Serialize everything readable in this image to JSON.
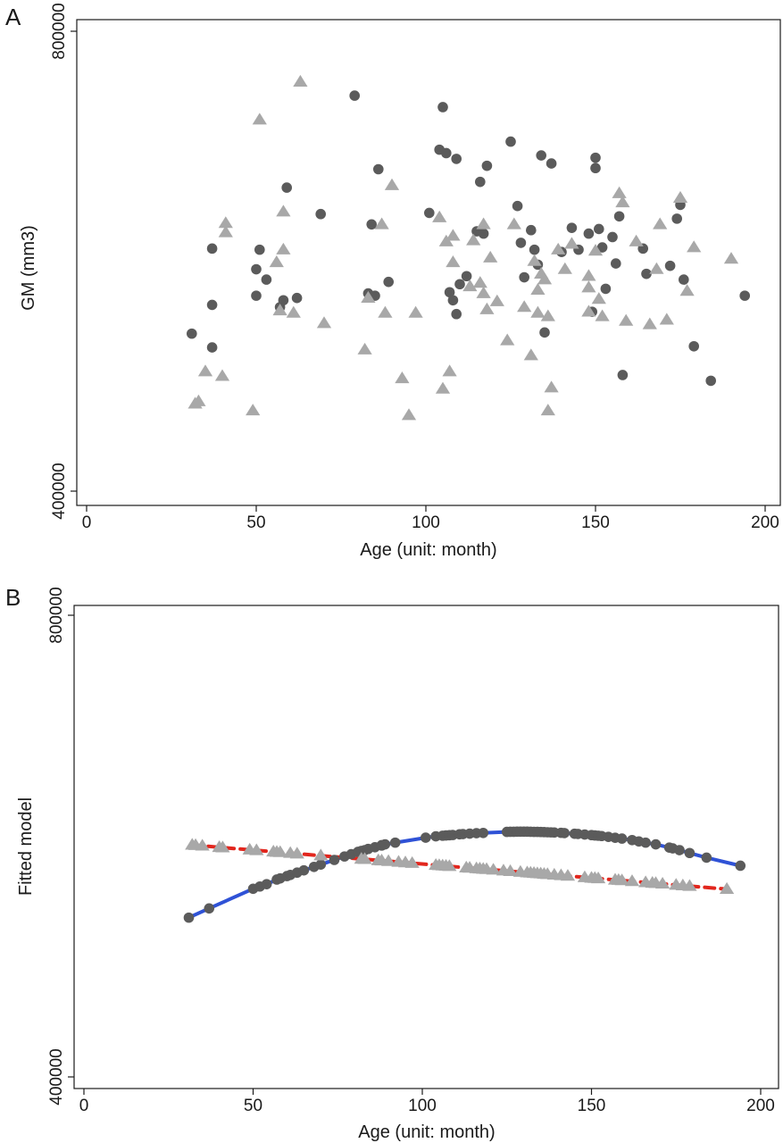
{
  "panels": [
    {
      "letter": "A",
      "xlabel": "Age (unit: month)",
      "ylabel": "GM (mm3)"
    },
    {
      "letter": "B",
      "xlabel": "Age (unit: month)",
      "ylabel": "Fitted model"
    }
  ],
  "colors": {
    "circle_group": "#5b5b5b",
    "triangle_group": "#a8a8a8",
    "circle_fit_line": "#2f52d6",
    "triangle_fit_line": "#e2261d",
    "frame": "#1a1a1a"
  },
  "chart_data": [
    {
      "panel": "A",
      "type": "scatter",
      "xlabel": "Age (unit: month)",
      "ylabel": "GM (mm3)",
      "xlim": [
        -5,
        205
      ],
      "ylim": [
        388000,
        805000
      ],
      "xticks": [
        0,
        50,
        100,
        150,
        200
      ],
      "yticks": [
        400000,
        800000
      ],
      "ytick_labels": [
        "400000",
        "800000"
      ],
      "grid": false,
      "series": [
        {
          "marker": "circle",
          "points": [
            [
              31,
              537000
            ],
            [
              37,
              525000
            ],
            [
              37,
              562000
            ],
            [
              37,
              611000
            ],
            [
              50,
              593000
            ],
            [
              50,
              570000
            ],
            [
              51,
              610000
            ],
            [
              53,
              584000
            ],
            [
              57,
              560000
            ],
            [
              58,
              566000
            ],
            [
              59,
              664000
            ],
            [
              62,
              568000
            ],
            [
              69,
              641000
            ],
            [
              79,
              744000
            ],
            [
              83,
              572000
            ],
            [
              84,
              632000
            ],
            [
              85,
              570000
            ],
            [
              86,
              680000
            ],
            [
              89,
              582000
            ],
            [
              101,
              642000
            ],
            [
              104,
              697000
            ],
            [
              105,
              734000
            ],
            [
              106,
              694000
            ],
            [
              107,
              573000
            ],
            [
              108,
              566000
            ],
            [
              109,
              689000
            ],
            [
              109,
              554000
            ],
            [
              110,
              580000
            ],
            [
              112,
              587000
            ],
            [
              115,
              626000
            ],
            [
              116,
              669000
            ],
            [
              117,
              624000
            ],
            [
              118,
              683000
            ],
            [
              125,
              704000
            ],
            [
              127,
              648000
            ],
            [
              128,
              616000
            ],
            [
              129,
              586000
            ],
            [
              131,
              627000
            ],
            [
              132,
              610000
            ],
            [
              133,
              597000
            ],
            [
              134,
              692000
            ],
            [
              135,
              538000
            ],
            [
              137,
              685000
            ],
            [
              140,
              608000
            ],
            [
              143,
              629000
            ],
            [
              145,
              610000
            ],
            [
              148,
              624000
            ],
            [
              149,
              556000
            ],
            [
              150,
              681000
            ],
            [
              150,
              690000
            ],
            [
              151,
              628000
            ],
            [
              152,
              612000
            ],
            [
              153,
              576000
            ],
            [
              155,
              621000
            ],
            [
              156,
              598000
            ],
            [
              157,
              639000
            ],
            [
              158,
              501000
            ],
            [
              164,
              611000
            ],
            [
              165,
              589000
            ],
            [
              172,
              596000
            ],
            [
              174,
              637000
            ],
            [
              175,
              649000
            ],
            [
              176,
              584000
            ],
            [
              179,
              526000
            ],
            [
              184,
              496000
            ],
            [
              194,
              570000
            ]
          ]
        },
        {
          "marker": "triangle",
          "points": [
            [
              32,
              476000
            ],
            [
              33,
              478000
            ],
            [
              35,
              504000
            ],
            [
              40,
              500000
            ],
            [
              41,
              633000
            ],
            [
              41,
              625000
            ],
            [
              49,
              470000
            ],
            [
              51,
              723000
            ],
            [
              56,
              599000
            ],
            [
              57,
              557000
            ],
            [
              58,
              610000
            ],
            [
              58,
              643000
            ],
            [
              61,
              555000
            ],
            [
              63,
              756000
            ],
            [
              70,
              546000
            ],
            [
              82,
              523000
            ],
            [
              83,
              568000
            ],
            [
              87,
              632000
            ],
            [
              88,
              555000
            ],
            [
              90,
              666000
            ],
            [
              93,
              498000
            ],
            [
              95,
              466000
            ],
            [
              97,
              555000
            ],
            [
              104,
              638000
            ],
            [
              105,
              489000
            ],
            [
              106,
              617000
            ],
            [
              107,
              504000
            ],
            [
              108,
              599000
            ],
            [
              108,
              622000
            ],
            [
              113,
              578000
            ],
            [
              114,
              618000
            ],
            [
              116,
              581000
            ],
            [
              117,
              572000
            ],
            [
              117,
              632000
            ],
            [
              118,
              558000
            ],
            [
              119,
              603000
            ],
            [
              121,
              565000
            ],
            [
              124,
              531000
            ],
            [
              126,
              632000
            ],
            [
              129,
              560000
            ],
            [
              131,
              518000
            ],
            [
              132,
              600000
            ],
            [
              133,
              555000
            ],
            [
              133,
              575000
            ],
            [
              134,
              589000
            ],
            [
              135,
              584000
            ],
            [
              136,
              470000
            ],
            [
              136,
              552000
            ],
            [
              137,
              490000
            ],
            [
              139,
              610000
            ],
            [
              141,
              593000
            ],
            [
              143,
              615000
            ],
            [
              148,
              556000
            ],
            [
              148,
              587000
            ],
            [
              148,
              577000
            ],
            [
              150,
              609000
            ],
            [
              151,
              567000
            ],
            [
              152,
              552000
            ],
            [
              157,
              659000
            ],
            [
              158,
              651000
            ],
            [
              159,
              548000
            ],
            [
              162,
              617000
            ],
            [
              166,
              545000
            ],
            [
              168,
              593000
            ],
            [
              169,
              632000
            ],
            [
              171,
              549000
            ],
            [
              175,
              655000
            ],
            [
              177,
              574000
            ],
            [
              179,
              612000
            ],
            [
              190,
              602000
            ]
          ]
        }
      ]
    },
    {
      "panel": "B",
      "type": "line",
      "xlabel": "Age (unit: month)",
      "ylabel": "Fitted model",
      "xlim": [
        -5,
        205
      ],
      "ylim": [
        388000,
        805000
      ],
      "xticks": [
        0,
        50,
        100,
        150,
        200
      ],
      "yticks": [
        400000,
        800000
      ],
      "ytick_labels": [
        "400000",
        "800000"
      ],
      "grid": false,
      "series": [
        {
          "marker": "circle",
          "line": "solid",
          "x": [
            31,
            37,
            50,
            52,
            54,
            57,
            58,
            60,
            61,
            63,
            65,
            68,
            70,
            74,
            77,
            79,
            81,
            82,
            83,
            84,
            86,
            88,
            88,
            89,
            92,
            101,
            104,
            106,
            107,
            108,
            109,
            111,
            112,
            114,
            116,
            118,
            125,
            126,
            127,
            128,
            129,
            130,
            131,
            132,
            133,
            134,
            135,
            136,
            137,
            138,
            139,
            141,
            142,
            145,
            146,
            148,
            150,
            151,
            152,
            153,
            155,
            157,
            159,
            162,
            164,
            166,
            169,
            173,
            174,
            176,
            179,
            184,
            194
          ],
          "y": [
            538000,
            546000,
            563000,
            565000,
            567000,
            571000,
            572000,
            574000,
            575000,
            577000,
            579000,
            582000,
            584000,
            588000,
            591000,
            593000,
            595000,
            595800,
            596500,
            597500,
            599000,
            600500,
            600800,
            601500,
            603000,
            607300,
            608500,
            609000,
            609200,
            609400,
            609600,
            610200,
            610400,
            610800,
            611200,
            611400,
            612300,
            612400,
            612400,
            612500,
            612500,
            612500,
            612500,
            612400,
            612300,
            612300,
            612200,
            612100,
            612000,
            611900,
            611800,
            611500,
            611300,
            610700,
            610500,
            610000,
            609500,
            609200,
            609000,
            608700,
            608000,
            607200,
            606500,
            605200,
            604000,
            603000,
            601500,
            598700,
            598000,
            596500,
            594000,
            590000,
            583000
          ]
        },
        {
          "marker": "triangle",
          "line": "dashed",
          "x": [
            32,
            33,
            35,
            40,
            41,
            49,
            51,
            56,
            57,
            58,
            61,
            63,
            70,
            82,
            83,
            87,
            88,
            90,
            93,
            95,
            97,
            104,
            105,
            106,
            107,
            108,
            113,
            114,
            116,
            117,
            118,
            119,
            121,
            124,
            126,
            129,
            131,
            132,
            133,
            134,
            135,
            136,
            137,
            139,
            141,
            143,
            148,
            150,
            151,
            152,
            157,
            158,
            159,
            162,
            166,
            168,
            169,
            171,
            175,
            177,
            179,
            190
          ],
          "y": [
            601000,
            600700,
            600200,
            599000,
            598700,
            596800,
            596300,
            595100,
            594800,
            594600,
            593900,
            593400,
            591700,
            588800,
            588600,
            587600,
            587400,
            586900,
            586200,
            585700,
            585200,
            583500,
            583300,
            583000,
            582800,
            582500,
            581300,
            581100,
            580600,
            580400,
            580100,
            579900,
            579400,
            578700,
            578200,
            577500,
            577000,
            576800,
            576500,
            576300,
            576100,
            575800,
            575600,
            575100,
            574600,
            574100,
            572900,
            572400,
            572200,
            571900,
            570700,
            570500,
            570200,
            569500,
            568500,
            568000,
            567800,
            567300,
            566300,
            565800,
            565300,
            562700
          ]
        }
      ]
    }
  ]
}
